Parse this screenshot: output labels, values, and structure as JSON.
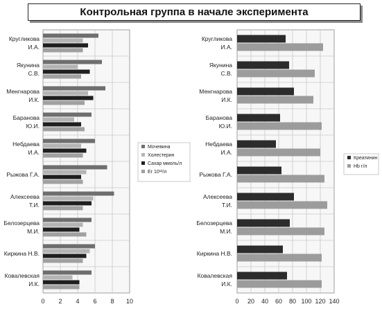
{
  "title": "Контрольная группа в начале эксперимента",
  "colors": {
    "urea": "#6e6e6e",
    "chol": "#b4b4b4",
    "sugar": "#1f1f1f",
    "er": "#a0a0a0",
    "creat": "#2c2c2c",
    "hb": "#9c9c9c",
    "grid": "#c8c8c8",
    "plot_bg": "#f7f7f7"
  },
  "chart_data": [
    {
      "type": "bar",
      "orientation": "horizontal",
      "categories": [
        [
          "Кругликова",
          "И.А."
        ],
        [
          "Якунина",
          "С.В."
        ],
        [
          "Менгнарова",
          "И.К."
        ],
        [
          "Баранова",
          "Ю.И."
        ],
        [
          "Небдаева",
          "И.А."
        ],
        [
          "Рыжова Г.А."
        ],
        [
          "Алексеева",
          "Т.И."
        ],
        [
          "Белозерцева",
          "М.И."
        ],
        [
          "Киркина Н.В."
        ],
        [
          "Ковалевская",
          "И.К."
        ]
      ],
      "series": [
        {
          "name": "Мочевина",
          "color_key": "urea",
          "values": [
            6.4,
            6.8,
            7.2,
            5.6,
            6.0,
            7.4,
            8.2,
            5.6,
            6.0,
            5.6
          ]
        },
        {
          "name": "Холестерин",
          "color_key": "chol",
          "values": [
            4.6,
            4.0,
            5.2,
            3.6,
            4.4,
            5.0,
            5.8,
            4.6,
            5.4,
            3.4
          ]
        },
        {
          "name": "Сахар ммоль/л",
          "color_key": "sugar",
          "values": [
            5.2,
            5.4,
            5.8,
            4.4,
            5.0,
            4.4,
            5.6,
            4.2,
            5.0,
            4.2
          ]
        },
        {
          "name": "Er 10¹²/л",
          "color_key": "er",
          "values": [
            4.6,
            4.4,
            4.8,
            4.8,
            4.6,
            4.6,
            4.6,
            5.0,
            4.6,
            4.2
          ]
        }
      ],
      "xlim": [
        0,
        10
      ],
      "xticks": [
        "0",
        "2",
        "4",
        "6",
        "8",
        "10"
      ],
      "grid": true,
      "legend_position": "right"
    },
    {
      "type": "bar",
      "orientation": "horizontal",
      "categories": [
        [
          "Кругликова",
          "И.А."
        ],
        [
          "Якунина",
          "С.В."
        ],
        [
          "Менгнарова",
          "И.К."
        ],
        [
          "Баранова",
          "Ю.И."
        ],
        [
          "Небдаева",
          "И.А."
        ],
        [
          "Рыжова Г.А."
        ],
        [
          "Алексеева",
          "Т.И."
        ],
        [
          "Белозерцева",
          "М.И."
        ],
        [
          "Киркина Н.В."
        ],
        [
          "Ковалевская",
          "И.К."
        ]
      ],
      "series": [
        {
          "name": "Креатинин",
          "color_key": "creat",
          "values": [
            70,
            75,
            82,
            62,
            56,
            64,
            82,
            76,
            66,
            72
          ]
        },
        {
          "name": "Hb г/л",
          "color_key": "hb",
          "values": [
            124,
            112,
            110,
            122,
            120,
            126,
            130,
            126,
            122,
            122
          ]
        }
      ],
      "xlim": [
        0,
        140
      ],
      "xticks": [
        "0",
        "20",
        "40",
        "60",
        "80",
        "100",
        "120",
        "140"
      ],
      "grid": true,
      "legend_position": "right"
    }
  ]
}
